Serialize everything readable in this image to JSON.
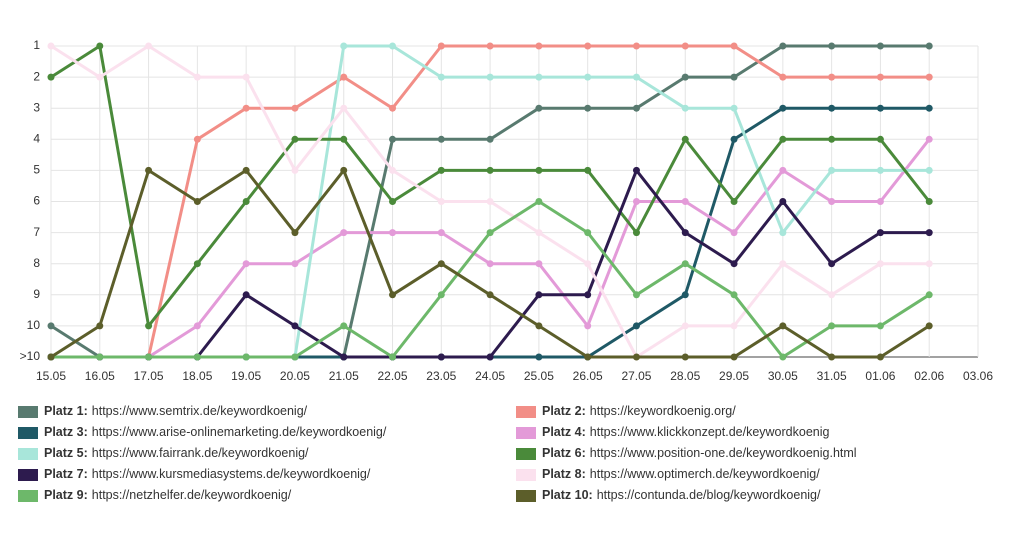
{
  "chart_data": {
    "type": "line",
    "categories": [
      "15.05",
      "16.05",
      "17.05",
      "18.05",
      "19.05",
      "20.05",
      "21.05",
      "22.05",
      "23.05",
      "24.05",
      "25.05",
      "26.05",
      "27.05",
      "28.05",
      "29.05",
      "30.05",
      "31.05",
      "01.06",
      "02.06",
      "03.06"
    ],
    "ylim": [
      1,
      11
    ],
    "y_inverted": true,
    "yticks": [
      1,
      2,
      3,
      4,
      5,
      6,
      7,
      8,
      9,
      10,
      {
        "value": 11,
        "label": ">10"
      }
    ],
    "grid": true,
    "series": [
      {
        "name": "Platz 1:",
        "url": "https://www.semtrix.de/keywordkoenig/",
        "color": "#587a6f",
        "values": [
          10,
          11,
          11,
          11,
          11,
          11,
          11,
          4,
          4,
          4,
          3,
          3,
          3,
          2,
          2,
          1,
          1,
          1,
          1,
          null
        ]
      },
      {
        "name": "Platz 2:",
        "url": "https://keywordkoenig.org/",
        "color": "#f28e87",
        "values": [
          11,
          11,
          11,
          4,
          3,
          3,
          2,
          3,
          1,
          1,
          1,
          1,
          1,
          1,
          1,
          2,
          2,
          2,
          2,
          null
        ]
      },
      {
        "name": "Platz 3:",
        "url": "https://www.arise-onlinemarketing.de/keywordkoenig/",
        "color": "#1f5966",
        "values": [
          11,
          11,
          11,
          11,
          11,
          11,
          11,
          11,
          11,
          11,
          11,
          11,
          10,
          9,
          4,
          3,
          3,
          3,
          3,
          null
        ]
      },
      {
        "name": "Platz 4:",
        "url": "https://www.klickkonzept.de/keywordkoenig",
        "color": "#e39ad8",
        "values": [
          11,
          11,
          11,
          10,
          8,
          8,
          7,
          7,
          7,
          8,
          8,
          10,
          6,
          6,
          7,
          5,
          6,
          6,
          4,
          null
        ]
      },
      {
        "name": "Platz 5:",
        "url": "https://www.fairrank.de/keywordkoenig/",
        "color": "#a8e6da",
        "values": [
          11,
          11,
          11,
          11,
          11,
          11,
          1,
          1,
          2,
          2,
          2,
          2,
          2,
          3,
          3,
          7,
          5,
          5,
          5,
          null
        ]
      },
      {
        "name": "Platz 6:",
        "url": "https://www.position-one.de/keywordkoenig.html",
        "color": "#4a8a3a",
        "values": [
          2,
          1,
          10,
          8,
          6,
          4,
          4,
          6,
          5,
          5,
          5,
          5,
          7,
          4,
          6,
          4,
          4,
          4,
          6,
          null
        ]
      },
      {
        "name": "Platz 7:",
        "url": "https://www.kursmediasystems.de/keywordkoenig/",
        "color": "#2d1b4e",
        "values": [
          11,
          11,
          11,
          11,
          9,
          10,
          11,
          11,
          11,
          11,
          9,
          9,
          5,
          7,
          8,
          6,
          8,
          7,
          7,
          null
        ]
      },
      {
        "name": "Platz 8:",
        "url": "https://www.optimerch.de/keywordkoenig/",
        "color": "#fbe1ee",
        "values": [
          1,
          2,
          1,
          2,
          2,
          5,
          3,
          5,
          6,
          6,
          7,
          8,
          11,
          10,
          10,
          8,
          9,
          8,
          8,
          null
        ]
      },
      {
        "name": "Platz 9:",
        "url": "https://netzhelfer.de/keywordkoenig/",
        "color": "#6db86a",
        "values": [
          11,
          11,
          11,
          11,
          11,
          11,
          10,
          11,
          9,
          7,
          6,
          7,
          9,
          8,
          9,
          11,
          10,
          10,
          9,
          null
        ]
      },
      {
        "name": "Platz 10:",
        "url": "https://contunda.de/blog/keywordkoenig/",
        "color": "#5c5e2a",
        "values": [
          11,
          10,
          5,
          6,
          5,
          7,
          5,
          9,
          8,
          9,
          10,
          11,
          11,
          11,
          11,
          10,
          11,
          11,
          10,
          null
        ]
      }
    ]
  }
}
